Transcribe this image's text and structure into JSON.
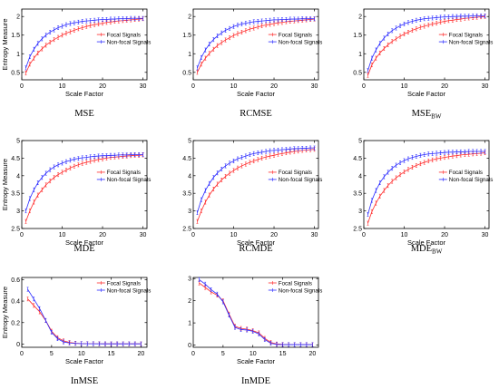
{
  "figure": {
    "legend_labels": [
      "Focal Signals",
      "Non-focal Signals"
    ],
    "colors": {
      "focal": "#ff2a2a",
      "nonfocal": "#2a2aff",
      "axis": "#000000"
    }
  },
  "chart_data": [
    {
      "type": "line",
      "caption_main": "MSE",
      "caption_sub": "",
      "xlabel": "Scale Factor",
      "ylabel": "Entropy Measure",
      "xlim": [
        0,
        31
      ],
      "ylim": [
        0.3,
        2.2
      ],
      "xticks": [
        0,
        10,
        20,
        30
      ],
      "yticks": [
        0.5,
        1,
        1.5,
        2
      ],
      "ytick_labels": [
        "0.5",
        "1",
        "1.5",
        "2"
      ],
      "legend_position": "center-right",
      "x": [
        1,
        2,
        3,
        4,
        5,
        6,
        7,
        8,
        9,
        10,
        11,
        12,
        13,
        14,
        15,
        16,
        17,
        18,
        19,
        20,
        21,
        22,
        23,
        24,
        25,
        26,
        27,
        28,
        29,
        30
      ],
      "series": [
        {
          "name": "Focal Signals",
          "values": [
            0.48,
            0.72,
            0.88,
            1.02,
            1.13,
            1.23,
            1.31,
            1.38,
            1.44,
            1.5,
            1.55,
            1.59,
            1.63,
            1.67,
            1.7,
            1.73,
            1.76,
            1.78,
            1.8,
            1.82,
            1.84,
            1.85,
            1.87,
            1.88,
            1.89,
            1.9,
            1.91,
            1.92,
            1.93,
            1.94
          ]
        },
        {
          "name": "Non-focal Signals",
          "values": [
            0.62,
            0.92,
            1.12,
            1.28,
            1.4,
            1.5,
            1.58,
            1.64,
            1.7,
            1.74,
            1.78,
            1.81,
            1.83,
            1.85,
            1.87,
            1.88,
            1.89,
            1.9,
            1.91,
            1.92,
            1.92,
            1.93,
            1.93,
            1.94,
            1.94,
            1.94,
            1.95,
            1.95,
            1.95,
            1.95
          ]
        }
      ]
    },
    {
      "type": "line",
      "caption_main": "RCMSE",
      "caption_sub": "",
      "xlabel": "Scale Factor",
      "ylabel": "",
      "xlim": [
        0,
        31
      ],
      "ylim": [
        0.3,
        2.2
      ],
      "xticks": [
        0,
        10,
        20,
        30
      ],
      "yticks": [
        0.5,
        1,
        1.5,
        2
      ],
      "ytick_labels": [
        "0.5",
        "1",
        "1.5",
        "2"
      ],
      "legend_position": "center-right",
      "x": [
        1,
        2,
        3,
        4,
        5,
        6,
        7,
        8,
        9,
        10,
        11,
        12,
        13,
        14,
        15,
        16,
        17,
        18,
        19,
        20,
        21,
        22,
        23,
        24,
        25,
        26,
        27,
        28,
        29,
        30
      ],
      "series": [
        {
          "name": "Focal Signals",
          "values": [
            0.5,
            0.72,
            0.88,
            1.01,
            1.12,
            1.22,
            1.3,
            1.37,
            1.43,
            1.49,
            1.54,
            1.58,
            1.62,
            1.66,
            1.69,
            1.72,
            1.75,
            1.77,
            1.79,
            1.81,
            1.83,
            1.84,
            1.86,
            1.87,
            1.88,
            1.89,
            1.9,
            1.91,
            1.92,
            1.93
          ]
        },
        {
          "name": "Non-focal Signals",
          "values": [
            0.62,
            0.9,
            1.1,
            1.26,
            1.38,
            1.48,
            1.56,
            1.63,
            1.68,
            1.73,
            1.77,
            1.8,
            1.82,
            1.84,
            1.86,
            1.87,
            1.88,
            1.89,
            1.9,
            1.91,
            1.91,
            1.92,
            1.92,
            1.93,
            1.93,
            1.93,
            1.94,
            1.94,
            1.94,
            1.94
          ]
        }
      ]
    },
    {
      "type": "line",
      "caption_main": "MSE",
      "caption_sub": "BW",
      "xlabel": "Scale Factor",
      "ylabel": "",
      "xlim": [
        0,
        31
      ],
      "ylim": [
        0.3,
        2.2
      ],
      "xticks": [
        0,
        10,
        20,
        30
      ],
      "yticks": [
        0.5,
        1,
        1.5,
        2
      ],
      "ytick_labels": [
        "0.5",
        "1",
        "1.5",
        "2"
      ],
      "legend_position": "center-right",
      "x": [
        1,
        2,
        3,
        4,
        5,
        6,
        7,
        8,
        9,
        10,
        11,
        12,
        13,
        14,
        15,
        16,
        17,
        18,
        19,
        20,
        21,
        22,
        23,
        24,
        25,
        26,
        27,
        28,
        29,
        30
      ],
      "series": [
        {
          "name": "Focal Signals",
          "values": [
            0.42,
            0.7,
            0.88,
            1.02,
            1.14,
            1.24,
            1.33,
            1.4,
            1.47,
            1.53,
            1.58,
            1.63,
            1.67,
            1.71,
            1.74,
            1.77,
            1.8,
            1.82,
            1.85,
            1.87,
            1.89,
            1.9,
            1.92,
            1.93,
            1.95,
            1.96,
            1.97,
            1.98,
            1.99,
            2.0
          ]
        },
        {
          "name": "Non-focal Signals",
          "values": [
            0.55,
            0.88,
            1.1,
            1.28,
            1.42,
            1.53,
            1.62,
            1.69,
            1.75,
            1.8,
            1.84,
            1.87,
            1.9,
            1.92,
            1.94,
            1.95,
            1.96,
            1.97,
            1.98,
            1.99,
            1.99,
            2.0,
            2.0,
            2.01,
            2.01,
            2.01,
            2.02,
            2.02,
            2.02,
            2.02
          ]
        }
      ]
    },
    {
      "type": "line",
      "caption_main": "MDE",
      "caption_sub": "",
      "xlabel": "Scale Factor",
      "ylabel": "Entropy Measure",
      "xlim": [
        0,
        31
      ],
      "ylim": [
        2.5,
        5.0
      ],
      "xticks": [
        0,
        10,
        20,
        30
      ],
      "yticks": [
        2.5,
        3,
        3.5,
        4,
        4.5,
        5
      ],
      "ytick_labels": [
        "2.5",
        "3",
        "3.5",
        "4",
        "4.5",
        "5"
      ],
      "legend_position": "center-right",
      "x": [
        1,
        2,
        3,
        4,
        5,
        6,
        7,
        8,
        9,
        10,
        11,
        12,
        13,
        14,
        15,
        16,
        17,
        18,
        19,
        20,
        21,
        22,
        23,
        24,
        25,
        26,
        27,
        28,
        29,
        30
      ],
      "series": [
        {
          "name": "Focal Signals",
          "values": [
            2.7,
            3.0,
            3.25,
            3.45,
            3.6,
            3.74,
            3.85,
            3.95,
            4.03,
            4.1,
            4.16,
            4.22,
            4.27,
            4.31,
            4.35,
            4.38,
            4.41,
            4.44,
            4.46,
            4.48,
            4.5,
            4.52,
            4.53,
            4.54,
            4.55,
            4.56,
            4.57,
            4.58,
            4.58,
            4.59
          ]
        },
        {
          "name": "Non-focal Signals",
          "values": [
            3.0,
            3.35,
            3.6,
            3.8,
            3.95,
            4.07,
            4.17,
            4.25,
            4.31,
            4.36,
            4.4,
            4.44,
            4.47,
            4.49,
            4.51,
            4.52,
            4.54,
            4.55,
            4.56,
            4.57,
            4.57,
            4.58,
            4.58,
            4.59,
            4.59,
            4.59,
            4.6,
            4.6,
            4.6,
            4.6
          ]
        }
      ]
    },
    {
      "type": "line",
      "caption_main": "RCMDE",
      "caption_sub": "",
      "xlabel": "Scale Factor",
      "ylabel": "",
      "xlim": [
        0,
        31
      ],
      "ylim": [
        2.5,
        5.0
      ],
      "xticks": [
        0,
        10,
        20,
        30
      ],
      "yticks": [
        2.5,
        3,
        3.5,
        4,
        4.5,
        5
      ],
      "ytick_labels": [
        "2.5",
        "3",
        "3.5",
        "4",
        "4.5",
        "5"
      ],
      "legend_position": "center-right",
      "x": [
        1,
        2,
        3,
        4,
        5,
        6,
        7,
        8,
        9,
        10,
        11,
        12,
        13,
        14,
        15,
        16,
        17,
        18,
        19,
        20,
        21,
        22,
        23,
        24,
        25,
        26,
        27,
        28,
        29,
        30
      ],
      "series": [
        {
          "name": "Focal Signals",
          "values": [
            2.7,
            3.0,
            3.25,
            3.45,
            3.62,
            3.76,
            3.88,
            3.98,
            4.07,
            4.15,
            4.22,
            4.28,
            4.33,
            4.38,
            4.42,
            4.46,
            4.5,
            4.53,
            4.56,
            4.58,
            4.61,
            4.63,
            4.65,
            4.67,
            4.69,
            4.7,
            4.72,
            4.73,
            4.74,
            4.75
          ]
        },
        {
          "name": "Non-focal Signals",
          "values": [
            2.95,
            3.32,
            3.58,
            3.78,
            3.95,
            4.08,
            4.19,
            4.28,
            4.36,
            4.42,
            4.48,
            4.52,
            4.56,
            4.6,
            4.63,
            4.65,
            4.67,
            4.69,
            4.71,
            4.72,
            4.73,
            4.74,
            4.75,
            4.76,
            4.77,
            4.77,
            4.78,
            4.78,
            4.79,
            4.79
          ]
        }
      ]
    },
    {
      "type": "line",
      "caption_main": "MDE",
      "caption_sub": "BW",
      "xlabel": "Scale Factor",
      "ylabel": "",
      "xlim": [
        0,
        31
      ],
      "ylim": [
        2.5,
        5.0
      ],
      "xticks": [
        0,
        10,
        20,
        30
      ],
      "yticks": [
        2.5,
        3,
        3.5,
        4,
        4.5,
        5
      ],
      "ytick_labels": [
        "2.5",
        "3",
        "3.5",
        "4",
        "4.5",
        "5"
      ],
      "legend_position": "center-right",
      "x": [
        1,
        2,
        3,
        4,
        5,
        6,
        7,
        8,
        9,
        10,
        11,
        12,
        13,
        14,
        15,
        16,
        17,
        18,
        19,
        20,
        21,
        22,
        23,
        24,
        25,
        26,
        27,
        28,
        29,
        30
      ],
      "series": [
        {
          "name": "Focal Signals",
          "values": [
            2.65,
            2.98,
            3.22,
            3.42,
            3.58,
            3.72,
            3.84,
            3.94,
            4.03,
            4.11,
            4.18,
            4.24,
            4.29,
            4.34,
            4.38,
            4.42,
            4.45,
            4.48,
            4.5,
            4.52,
            4.54,
            4.56,
            4.57,
            4.59,
            4.6,
            4.61,
            4.62,
            4.63,
            4.64,
            4.65
          ]
        },
        {
          "name": "Non-focal Signals",
          "values": [
            2.9,
            3.3,
            3.58,
            3.8,
            3.97,
            4.1,
            4.21,
            4.3,
            4.37,
            4.43,
            4.48,
            4.52,
            4.55,
            4.58,
            4.6,
            4.62,
            4.63,
            4.64,
            4.65,
            4.66,
            4.67,
            4.67,
            4.68,
            4.68,
            4.68,
            4.69,
            4.69,
            4.69,
            4.69,
            4.69
          ]
        }
      ]
    },
    {
      "type": "line",
      "caption_main": "InMSE",
      "caption_sub": "",
      "xlabel": "Scale Factor",
      "ylabel": "Entropy Measure",
      "xlim": [
        0,
        21
      ],
      "ylim": [
        -0.03,
        0.62
      ],
      "xticks": [
        0,
        5,
        10,
        15,
        20
      ],
      "yticks": [
        0,
        0.2,
        0.4,
        0.6
      ],
      "ytick_labels": [
        "0",
        "0.2",
        "0.4",
        "0.6"
      ],
      "legend_position": "top-right",
      "x": [
        1,
        2,
        3,
        4,
        5,
        6,
        7,
        8,
        9,
        10,
        11,
        12,
        13,
        14,
        15,
        16,
        17,
        18,
        19,
        20
      ],
      "series": [
        {
          "name": "Focal Signals",
          "values": [
            0.42,
            0.36,
            0.3,
            0.22,
            0.12,
            0.06,
            0.03,
            0.015,
            0.008,
            0.005,
            0.004,
            0.003,
            0.003,
            0.002,
            0.002,
            0.002,
            0.002,
            0.002,
            0.002,
            0.002
          ]
        },
        {
          "name": "Non-focal Signals",
          "values": [
            0.51,
            0.42,
            0.33,
            0.22,
            0.11,
            0.05,
            0.02,
            0.01,
            0.006,
            0.004,
            0.003,
            0.003,
            0.002,
            0.002,
            0.002,
            0.002,
            0.002,
            0.002,
            0.002,
            0.002
          ]
        }
      ]
    },
    {
      "type": "line",
      "caption_main": "InMDE",
      "caption_sub": "",
      "xlabel": "Scale Factor",
      "ylabel": "",
      "xlim": [
        0,
        21
      ],
      "ylim": [
        -0.1,
        3.05
      ],
      "xticks": [
        0,
        5,
        10,
        15,
        20
      ],
      "yticks": [
        0,
        1,
        2,
        3
      ],
      "ytick_labels": [
        "0",
        "1",
        "2",
        "3"
      ],
      "legend_position": "top-right",
      "x": [
        1,
        2,
        3,
        4,
        5,
        6,
        7,
        8,
        9,
        10,
        11,
        12,
        13,
        14,
        15,
        16,
        17,
        18,
        19,
        20
      ],
      "series": [
        {
          "name": "Focal Signals",
          "values": [
            2.8,
            2.6,
            2.4,
            2.25,
            2.0,
            1.4,
            0.85,
            0.75,
            0.72,
            0.65,
            0.55,
            0.3,
            0.12,
            0.05,
            0.03,
            0.02,
            0.02,
            0.02,
            0.02,
            0.02
          ]
        },
        {
          "name": "Non-focal Signals",
          "values": [
            2.95,
            2.75,
            2.5,
            2.3,
            1.95,
            1.35,
            0.8,
            0.7,
            0.68,
            0.62,
            0.5,
            0.25,
            0.08,
            0.03,
            0.02,
            0.02,
            0.02,
            0.02,
            0.02,
            0.02
          ]
        }
      ]
    }
  ]
}
